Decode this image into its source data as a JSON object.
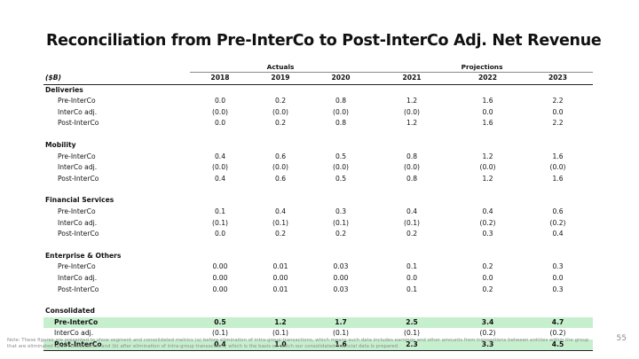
{
  "title": "Reconciliation from Pre-InterCo to Post-InterCo Adj. Net Revenue",
  "header": {
    "actuals_label": "Actuals",
    "projections_label": "Projections",
    "unit_label": "($B)",
    "years": [
      "2018",
      "2019",
      "2020",
      "2021",
      "2022",
      "2023"
    ]
  },
  "segments": [
    {
      "name": "Deliveries",
      "rows": [
        {
          "label": "Pre-InterCo",
          "values": [
            "0.0",
            "0.2",
            "0.8",
            "1.2",
            "1.6",
            "2.2"
          ]
        },
        {
          "label": "InterCo adj.",
          "values": [
            "(0.0)",
            "(0.0)",
            "(0.0)",
            "(0.0)",
            "0.0",
            "0.0"
          ]
        },
        {
          "label": "Post-InterCo",
          "values": [
            "0.0",
            "0.2",
            "0.8",
            "1.2",
            "1.6",
            "2.2"
          ]
        }
      ]
    },
    {
      "name": "Mobility",
      "rows": [
        {
          "label": "Pre-InterCo",
          "values": [
            "0.4",
            "0.6",
            "0.5",
            "0.8",
            "1.2",
            "1.6"
          ]
        },
        {
          "label": "InterCo adj.",
          "values": [
            "(0.0)",
            "(0.0)",
            "(0.0)",
            "(0.0)",
            "(0.0)",
            "(0.0)"
          ]
        },
        {
          "label": "Post-InterCo",
          "values": [
            "0.4",
            "0.6",
            "0.5",
            "0.8",
            "1.2",
            "1.6"
          ]
        }
      ]
    },
    {
      "name": "Financial Services",
      "rows": [
        {
          "label": "Pre-InterCo",
          "values": [
            "0.1",
            "0.4",
            "0.3",
            "0.4",
            "0.4",
            "0.6"
          ]
        },
        {
          "label": "InterCo adj.",
          "values": [
            "(0.1)",
            "(0.1)",
            "(0.1)",
            "(0.1)",
            "(0.2)",
            "(0.2)"
          ]
        },
        {
          "label": "Post-InterCo",
          "values": [
            "0.0",
            "0.2",
            "0.2",
            "0.2",
            "0.3",
            "0.4"
          ]
        }
      ]
    },
    {
      "name": "Enterprise & Others",
      "rows": [
        {
          "label": "Pre-InterCo",
          "values": [
            "0.00",
            "0.01",
            "0.03",
            "0.1",
            "0.2",
            "0.3"
          ]
        },
        {
          "label": "InterCo adj.",
          "values": [
            "0.00",
            "0.00",
            "0.00",
            "0.0",
            "0.0",
            "0.0"
          ]
        },
        {
          "label": "Post-InterCo",
          "values": [
            "0.00",
            "0.01",
            "0.03",
            "0.1",
            "0.2",
            "0.3"
          ]
        }
      ]
    }
  ],
  "consolidated": {
    "name": "Consolidated",
    "rows": [
      {
        "label": "Pre-InterCo",
        "values": [
          "0.5",
          "1.2",
          "1.7",
          "2.5",
          "3.4",
          "4.7"
        ],
        "highlight": true
      },
      {
        "label": "InterCo adj.",
        "values": [
          "(0.1)",
          "(0.1)",
          "(0.1)",
          "(0.1)",
          "(0.2)",
          "(0.2)"
        ],
        "highlight": false
      },
      {
        "label": "Post-InterCo",
        "values": [
          "0.4",
          "1.0",
          "1.6",
          "2.3",
          "3.3",
          "4.5"
        ],
        "highlight": true
      }
    ]
  },
  "colors": {
    "highlight_row": "#c6efce"
  },
  "footnote": "Note: These figures are presented to show segment and consolidated metrics (a) before elimination of intra-group transactions, which means such data includes earnings and other amounts from transactions between entities within the group that are eliminated upon consolidation and (b) after elimination of intra-group transactions, which is the basis on which our consolidated financial data is prepared.",
  "page_number": "55"
}
